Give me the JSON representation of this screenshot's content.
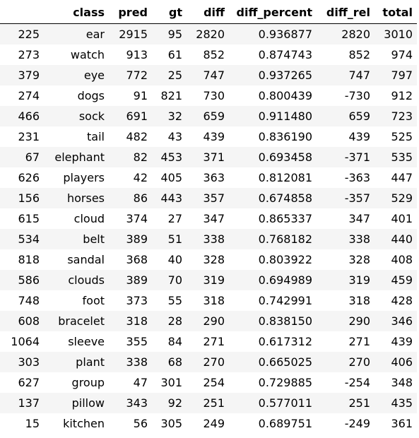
{
  "columns": [
    "",
    "class",
    "pred",
    "gt",
    "diff",
    "diff_percent",
    "diff_rel",
    "total"
  ],
  "rows": [
    [
      "225",
      "ear",
      "2915",
      "95",
      "2820",
      "0.936877",
      "2820",
      "3010"
    ],
    [
      "273",
      "watch",
      "913",
      "61",
      "852",
      "0.874743",
      "852",
      "974"
    ],
    [
      "379",
      "eye",
      "772",
      "25",
      "747",
      "0.937265",
      "747",
      "797"
    ],
    [
      "274",
      "dogs",
      "91",
      "821",
      "730",
      "0.800439",
      "-730",
      "912"
    ],
    [
      "466",
      "sock",
      "691",
      "32",
      "659",
      "0.911480",
      "659",
      "723"
    ],
    [
      "231",
      "tail",
      "482",
      "43",
      "439",
      "0.836190",
      "439",
      "525"
    ],
    [
      "67",
      "elephant",
      "82",
      "453",
      "371",
      "0.693458",
      "-371",
      "535"
    ],
    [
      "626",
      "players",
      "42",
      "405",
      "363",
      "0.812081",
      "-363",
      "447"
    ],
    [
      "156",
      "horses",
      "86",
      "443",
      "357",
      "0.674858",
      "-357",
      "529"
    ],
    [
      "615",
      "cloud",
      "374",
      "27",
      "347",
      "0.865337",
      "347",
      "401"
    ],
    [
      "534",
      "belt",
      "389",
      "51",
      "338",
      "0.768182",
      "338",
      "440"
    ],
    [
      "818",
      "sandal",
      "368",
      "40",
      "328",
      "0.803922",
      "328",
      "408"
    ],
    [
      "586",
      "clouds",
      "389",
      "70",
      "319",
      "0.694989",
      "319",
      "459"
    ],
    [
      "748",
      "foot",
      "373",
      "55",
      "318",
      "0.742991",
      "318",
      "428"
    ],
    [
      "608",
      "bracelet",
      "318",
      "28",
      "290",
      "0.838150",
      "290",
      "346"
    ],
    [
      "1064",
      "sleeve",
      "355",
      "84",
      "271",
      "0.617312",
      "271",
      "439"
    ],
    [
      "303",
      "plant",
      "338",
      "68",
      "270",
      "0.665025",
      "270",
      "406"
    ],
    [
      "627",
      "group",
      "47",
      "301",
      "254",
      "0.729885",
      "-254",
      "348"
    ],
    [
      "137",
      "pillow",
      "343",
      "92",
      "251",
      "0.577011",
      "251",
      "435"
    ],
    [
      "15",
      "kitchen",
      "56",
      "305",
      "249",
      "0.689751",
      "-249",
      "361"
    ]
  ]
}
